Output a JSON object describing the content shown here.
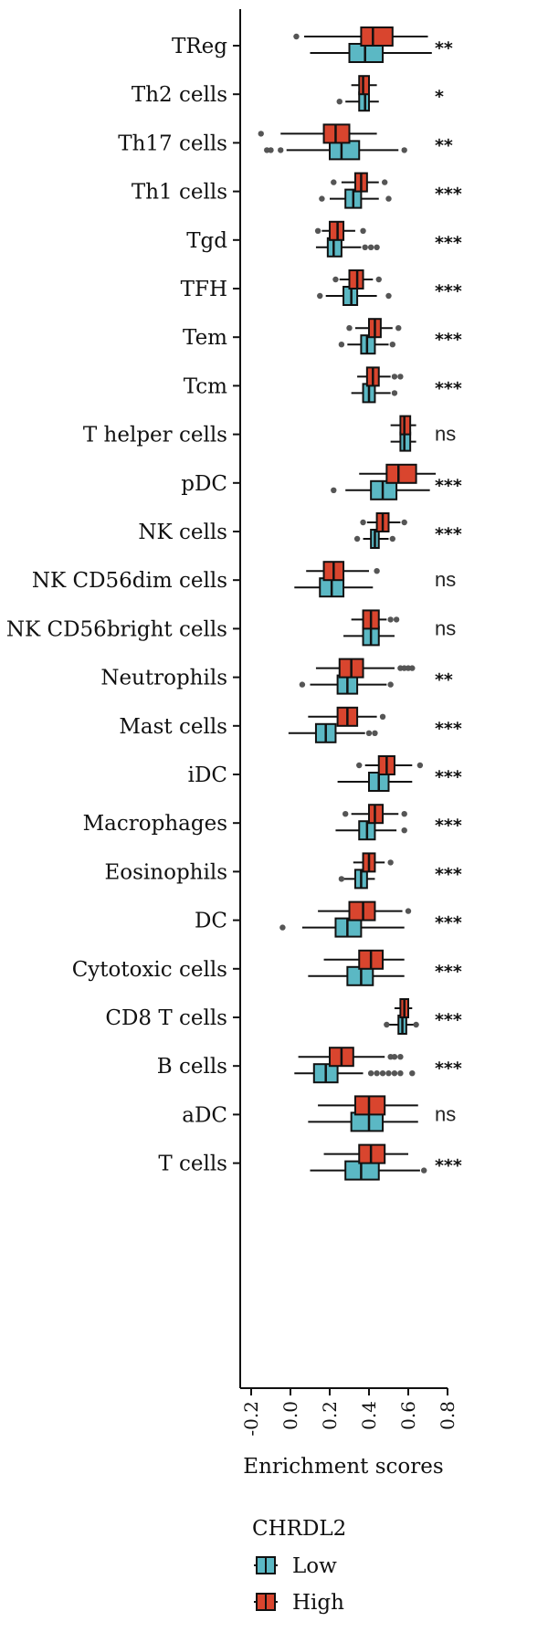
{
  "chart_data": {
    "type": "boxplot",
    "orientation": "horizontal",
    "xlabel": "Enrichment scores",
    "xlim": [
      -0.2,
      0.8
    ],
    "xticks": [
      "-0.2",
      "0.0",
      "0.2",
      "0.4",
      "0.6",
      "0.8"
    ],
    "xtick_values": [
      -0.2,
      0.0,
      0.2,
      0.4,
      0.6,
      0.8
    ],
    "legend": {
      "title": "CHRDL2",
      "items": [
        {
          "label": "Low",
          "color": "#5bb8c4"
        },
        {
          "label": "High",
          "color": "#d9452e"
        }
      ]
    },
    "groups": [
      {
        "category": "TReg",
        "sig": "**",
        "high": {
          "whisker": [
            0.07,
            0.7
          ],
          "box": [
            0.36,
            0.52
          ],
          "median": 0.42,
          "outliers": [
            0.03
          ]
        },
        "low": {
          "whisker": [
            0.1,
            0.72
          ],
          "box": [
            0.3,
            0.47
          ],
          "median": 0.38,
          "outliers": []
        }
      },
      {
        "category": "Th2 cells",
        "sig": "*",
        "high": {
          "whisker": [
            0.31,
            0.44
          ],
          "box": [
            0.35,
            0.4
          ],
          "median": 0.37,
          "outliers": []
        },
        "low": {
          "whisker": [
            0.28,
            0.45
          ],
          "box": [
            0.35,
            0.4
          ],
          "median": 0.38,
          "outliers": [
            0.25
          ]
        }
      },
      {
        "category": "Th17 cells",
        "sig": "**",
        "high": {
          "whisker": [
            -0.05,
            0.44
          ],
          "box": [
            0.17,
            0.3
          ],
          "median": 0.23,
          "outliers": [
            -0.15
          ]
        },
        "low": {
          "whisker": [
            -0.02,
            0.55
          ],
          "box": [
            0.2,
            0.35
          ],
          "median": 0.26,
          "outliers": [
            -0.12,
            -0.1,
            -0.05,
            0.58
          ]
        }
      },
      {
        "category": "Th1 cells",
        "sig": "***",
        "high": {
          "whisker": [
            0.26,
            0.45
          ],
          "box": [
            0.33,
            0.39
          ],
          "median": 0.36,
          "outliers": [
            0.22,
            0.48
          ]
        },
        "low": {
          "whisker": [
            0.2,
            0.45
          ],
          "box": [
            0.28,
            0.36
          ],
          "median": 0.32,
          "outliers": [
            0.16,
            0.5
          ]
        }
      },
      {
        "category": "Tgd",
        "sig": "***",
        "high": {
          "whisker": [
            0.16,
            0.33
          ],
          "box": [
            0.2,
            0.27
          ],
          "median": 0.24,
          "outliers": [
            0.14,
            0.37
          ]
        },
        "low": {
          "whisker": [
            0.13,
            0.36
          ],
          "box": [
            0.19,
            0.26
          ],
          "median": 0.22,
          "outliers": [
            0.38,
            0.41,
            0.44
          ]
        }
      },
      {
        "category": "TFH",
        "sig": "***",
        "high": {
          "whisker": [
            0.25,
            0.42
          ],
          "box": [
            0.3,
            0.37
          ],
          "median": 0.34,
          "outliers": [
            0.23,
            0.45
          ]
        },
        "low": {
          "whisker": [
            0.18,
            0.44
          ],
          "box": [
            0.27,
            0.34
          ],
          "median": 0.31,
          "outliers": [
            0.15,
            0.5
          ]
        }
      },
      {
        "category": "Tem",
        "sig": "***",
        "high": {
          "whisker": [
            0.33,
            0.52
          ],
          "box": [
            0.4,
            0.46
          ],
          "median": 0.43,
          "outliers": [
            0.3,
            0.55
          ]
        },
        "low": {
          "whisker": [
            0.29,
            0.5
          ],
          "box": [
            0.36,
            0.43
          ],
          "median": 0.39,
          "outliers": [
            0.26,
            0.52
          ]
        }
      },
      {
        "category": "Tcm",
        "sig": "***",
        "high": {
          "whisker": [
            0.34,
            0.51
          ],
          "box": [
            0.39,
            0.45
          ],
          "median": 0.42,
          "outliers": [
            0.53,
            0.56
          ]
        },
        "low": {
          "whisker": [
            0.31,
            0.51
          ],
          "box": [
            0.37,
            0.43
          ],
          "median": 0.4,
          "outliers": [
            0.53
          ]
        }
      },
      {
        "category": "T helper cells",
        "sig": "ns",
        "high": {
          "whisker": [
            0.51,
            0.64
          ],
          "box": [
            0.56,
            0.61
          ],
          "median": 0.58,
          "outliers": []
        },
        "low": {
          "whisker": [
            0.51,
            0.64
          ],
          "box": [
            0.56,
            0.61
          ],
          "median": 0.58,
          "outliers": []
        }
      },
      {
        "category": "pDC",
        "sig": "***",
        "high": {
          "whisker": [
            0.35,
            0.74
          ],
          "box": [
            0.49,
            0.64
          ],
          "median": 0.55,
          "outliers": []
        },
        "low": {
          "whisker": [
            0.28,
            0.71
          ],
          "box": [
            0.41,
            0.54
          ],
          "median": 0.47,
          "outliers": [
            0.22
          ]
        }
      },
      {
        "category": "NK cells",
        "sig": "***",
        "high": {
          "whisker": [
            0.39,
            0.56
          ],
          "box": [
            0.44,
            0.5
          ],
          "median": 0.47,
          "outliers": [
            0.37,
            0.58
          ]
        },
        "low": {
          "whisker": [
            0.37,
            0.5
          ],
          "box": [
            0.41,
            0.45
          ],
          "median": 0.43,
          "outliers": [
            0.34,
            0.52
          ]
        }
      },
      {
        "category": "NK CD56dim cells",
        "sig": "ns",
        "high": {
          "whisker": [
            0.08,
            0.4
          ],
          "box": [
            0.17,
            0.27
          ],
          "median": 0.22,
          "outliers": [
            0.44
          ]
        },
        "low": {
          "whisker": [
            0.02,
            0.42
          ],
          "box": [
            0.15,
            0.27
          ],
          "median": 0.21,
          "outliers": []
        }
      },
      {
        "category": "NK CD56bright cells",
        "sig": "ns",
        "high": {
          "whisker": [
            0.31,
            0.49
          ],
          "box": [
            0.37,
            0.45
          ],
          "median": 0.41,
          "outliers": [
            0.51,
            0.54
          ]
        },
        "low": {
          "whisker": [
            0.27,
            0.53
          ],
          "box": [
            0.37,
            0.45
          ],
          "median": 0.41,
          "outliers": []
        }
      },
      {
        "category": "Neutrophils",
        "sig": "**",
        "high": {
          "whisker": [
            0.13,
            0.53
          ],
          "box": [
            0.25,
            0.37
          ],
          "median": 0.31,
          "outliers": [
            0.56,
            0.58,
            0.6,
            0.62
          ]
        },
        "low": {
          "whisker": [
            0.1,
            0.49
          ],
          "box": [
            0.24,
            0.34
          ],
          "median": 0.29,
          "outliers": [
            0.06,
            0.51
          ]
        }
      },
      {
        "category": "Mast cells",
        "sig": "***",
        "high": {
          "whisker": [
            0.09,
            0.44
          ],
          "box": [
            0.24,
            0.34
          ],
          "median": 0.29,
          "outliers": [
            0.47
          ]
        },
        "low": {
          "whisker": [
            -0.01,
            0.38
          ],
          "box": [
            0.13,
            0.23
          ],
          "median": 0.18,
          "outliers": [
            0.4,
            0.43
          ]
        }
      },
      {
        "category": "iDC",
        "sig": "***",
        "high": {
          "whisker": [
            0.38,
            0.62
          ],
          "box": [
            0.45,
            0.53
          ],
          "median": 0.49,
          "outliers": [
            0.35,
            0.66
          ]
        },
        "low": {
          "whisker": [
            0.24,
            0.62
          ],
          "box": [
            0.4,
            0.5
          ],
          "median": 0.45,
          "outliers": []
        }
      },
      {
        "category": "Macrophages",
        "sig": "***",
        "high": {
          "whisker": [
            0.31,
            0.55
          ],
          "box": [
            0.4,
            0.47
          ],
          "median": 0.43,
          "outliers": [
            0.28,
            0.58
          ]
        },
        "low": {
          "whisker": [
            0.23,
            0.54
          ],
          "box": [
            0.35,
            0.43
          ],
          "median": 0.39,
          "outliers": [
            0.58
          ]
        }
      },
      {
        "category": "Eosinophils",
        "sig": "***",
        "high": {
          "whisker": [
            0.32,
            0.48
          ],
          "box": [
            0.37,
            0.43
          ],
          "median": 0.4,
          "outliers": [
            0.51
          ]
        },
        "low": {
          "whisker": [
            0.27,
            0.43
          ],
          "box": [
            0.33,
            0.39
          ],
          "median": 0.36,
          "outliers": [
            0.26
          ]
        }
      },
      {
        "category": "DC",
        "sig": "***",
        "high": {
          "whisker": [
            0.14,
            0.57
          ],
          "box": [
            0.3,
            0.43
          ],
          "median": 0.37,
          "outliers": [
            0.6
          ]
        },
        "low": {
          "whisker": [
            0.06,
            0.58
          ],
          "box": [
            0.23,
            0.36
          ],
          "median": 0.29,
          "outliers": [
            -0.04
          ]
        }
      },
      {
        "category": "Cytotoxic cells",
        "sig": "***",
        "high": {
          "whisker": [
            0.17,
            0.58
          ],
          "box": [
            0.35,
            0.47
          ],
          "median": 0.41,
          "outliers": []
        },
        "low": {
          "whisker": [
            0.09,
            0.58
          ],
          "box": [
            0.29,
            0.42
          ],
          "median": 0.36,
          "outliers": []
        }
      },
      {
        "category": "CD8 T cells",
        "sig": "***",
        "high": {
          "whisker": [
            0.53,
            0.62
          ],
          "box": [
            0.56,
            0.6
          ],
          "median": 0.58,
          "outliers": []
        },
        "low": {
          "whisker": [
            0.5,
            0.63
          ],
          "box": [
            0.55,
            0.59
          ],
          "median": 0.57,
          "outliers": [
            0.49,
            0.64
          ]
        }
      },
      {
        "category": "B cells",
        "sig": "***",
        "high": {
          "whisker": [
            0.04,
            0.48
          ],
          "box": [
            0.2,
            0.32
          ],
          "median": 0.26,
          "outliers": [
            0.51,
            0.53,
            0.56
          ]
        },
        "low": {
          "whisker": [
            0.02,
            0.37
          ],
          "box": [
            0.12,
            0.24
          ],
          "median": 0.18,
          "outliers": [
            0.41,
            0.44,
            0.47,
            0.5,
            0.53,
            0.56,
            0.62
          ]
        }
      },
      {
        "category": "aDC",
        "sig": "ns",
        "high": {
          "whisker": [
            0.14,
            0.65
          ],
          "box": [
            0.33,
            0.48
          ],
          "median": 0.4,
          "outliers": []
        },
        "low": {
          "whisker": [
            0.09,
            0.65
          ],
          "box": [
            0.31,
            0.47
          ],
          "median": 0.4,
          "outliers": []
        }
      },
      {
        "category": "T cells",
        "sig": "***",
        "high": {
          "whisker": [
            0.17,
            0.6
          ],
          "box": [
            0.35,
            0.48
          ],
          "median": 0.41,
          "outliers": []
        },
        "low": {
          "whisker": [
            0.1,
            0.66
          ],
          "box": [
            0.28,
            0.45
          ],
          "median": 0.36,
          "outliers": [
            0.68
          ]
        }
      }
    ]
  }
}
